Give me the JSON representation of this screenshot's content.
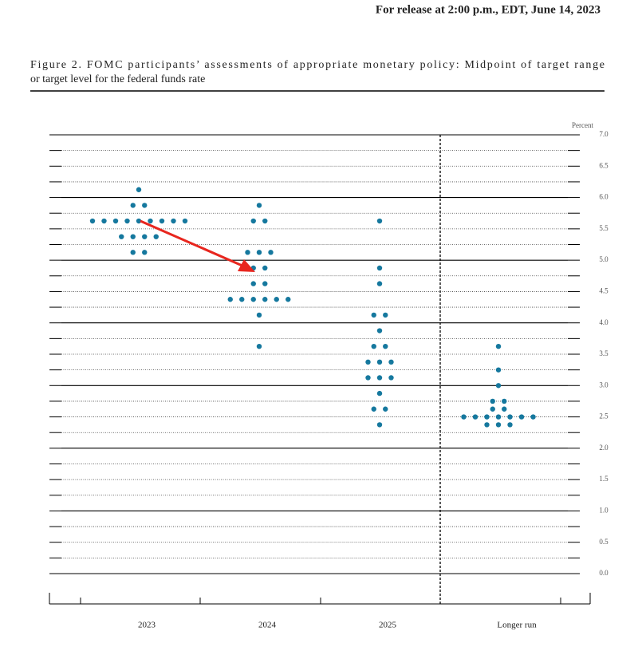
{
  "chart_data": {
    "type": "dotplot",
    "release": "For release at 2:00 p.m., EDT, June 14, 2023",
    "title": [
      "Figure 2.  FOMC participants’ assessments of appropriate monetary policy:  Midpoint of target range",
      "or target level for the federal funds rate"
    ],
    "ylabel": "Percent",
    "categories": [
      "2023",
      "2024",
      "2025",
      "Longer run"
    ],
    "values": [
      [
        6.125,
        5.875,
        5.875,
        5.625,
        5.625,
        5.625,
        5.625,
        5.625,
        5.625,
        5.625,
        5.625,
        5.625,
        5.375,
        5.375,
        5.375,
        5.375,
        5.125,
        5.125
      ],
      [
        5.875,
        5.625,
        5.625,
        5.125,
        5.125,
        5.125,
        4.875,
        4.875,
        4.625,
        4.625,
        4.375,
        4.375,
        4.375,
        4.375,
        4.375,
        4.375,
        4.125,
        3.625
      ],
      [
        5.625,
        4.875,
        4.625,
        4.125,
        4.125,
        3.875,
        3.625,
        3.625,
        3.375,
        3.375,
        3.375,
        3.125,
        3.125,
        3.125,
        2.875,
        2.625,
        2.625,
        2.375
      ],
      [
        3.625,
        3.25,
        3.0,
        2.75,
        2.75,
        2.625,
        2.625,
        2.5,
        2.5,
        2.5,
        2.5,
        2.5,
        2.5,
        2.5,
        2.375,
        2.375,
        2.375
      ]
    ],
    "color": "#15789e",
    "ylim": [
      0,
      7
    ],
    "yticks": [
      {
        "value": 0,
        "label": "0.0"
      },
      0.5,
      {
        "value": 1,
        "label": "1.0"
      },
      1.5,
      {
        "value": 2,
        "label": "2.0"
      },
      2.5,
      {
        "value": 3,
        "label": "3.0"
      },
      3.5,
      {
        "value": 4,
        "label": "4.0"
      },
      4.5,
      {
        "value": 5,
        "label": "5.0"
      },
      5.5,
      {
        "value": 6,
        "label": "6.0"
      },
      6.5,
      {
        "value": 7,
        "label": "7.0"
      }
    ],
    "ygrid": [
      0,
      0.25,
      0.5,
      0.75,
      1,
      1.25,
      1.5,
      1.75,
      2,
      2.25,
      2.5,
      2.75,
      3,
      3.25,
      3.5,
      3.75,
      4,
      4.25,
      4.5,
      4.75,
      5,
      5.25,
      5.5,
      5.75,
      6,
      6.25,
      6.5,
      6.75,
      7
    ]
  }
}
